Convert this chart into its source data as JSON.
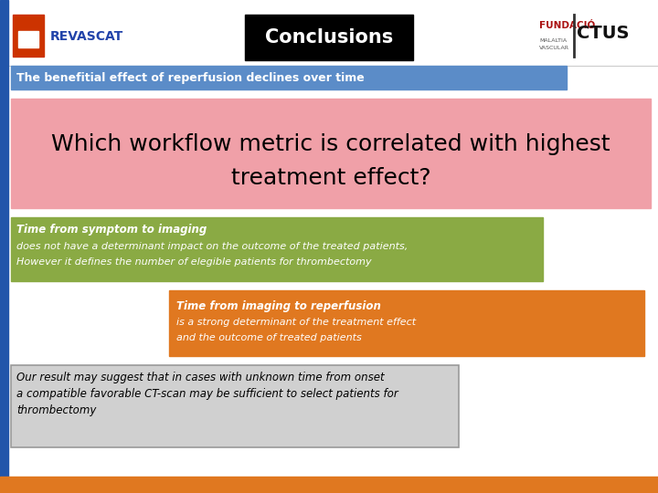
{
  "title": "Conclusions",
  "title_bg": "#000000",
  "title_color": "#ffffff",
  "bg_color": "#ffffff",
  "left_bar_color": "#2255aa",
  "bottom_bar_color": "#e07820",
  "subtitle_text": "The benefitial effect of reperfusion declines over time",
  "subtitle_bg": "#5b8cc8",
  "subtitle_color": "#ffffff",
  "big_question_line1": "Which workflow metric is correlated with highest",
  "big_question_line2": "treatment effect?",
  "big_question_bg": "#f0a0a8",
  "big_question_color": "#000000",
  "green_box_title": "Time from symptom to imaging",
  "green_box_body1": "does not have a determinant impact on the outcome of the treated patients,",
  "green_box_body2": "However it defines the number of elegible patients for thrombectomy",
  "green_box_bg": "#8aaa44",
  "green_box_color": "#ffffff",
  "orange_box_title": "Time from imaging to reperfusion",
  "orange_box_body1": "is a strong determinant of the treatment effect",
  "orange_box_body2": "and the outcome of treated patients",
  "orange_box_bg": "#e07820",
  "orange_box_color": "#ffffff",
  "gray_box_line1": "Our result may suggest that in cases with unknown time from onset",
  "gray_box_line2": "a compatible favorable CT-scan may be sufficient to select patients for",
  "gray_box_line3": "thrombectomy",
  "gray_box_bg": "#d0d0d0",
  "gray_box_color": "#000000",
  "gray_box_border": "#999999",
  "revascat_icon_color": "#cc3300",
  "revascat_text_color": "#2244aa",
  "fundacio_color": "#aa1111",
  "ictus_color": "#111111"
}
